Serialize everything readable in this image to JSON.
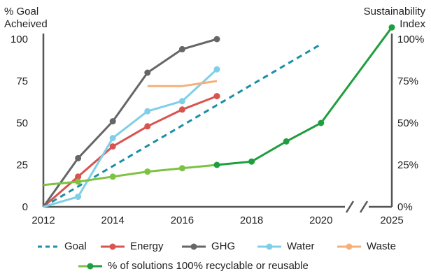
{
  "left_axis_title_line1": "% Goal",
  "left_axis_title_line2": "Acheived",
  "right_axis_title_line1": "Sustainability",
  "right_axis_title_line2": "Index",
  "colors": {
    "goal": "#1a8fa8",
    "energy": "#d9534f",
    "ghg": "#666666",
    "water": "#7fcfe8",
    "waste": "#f5b07a",
    "solutions_early": "#7dc242",
    "solutions_late": "#1f9e3f",
    "axis": "#555555"
  },
  "chart_data": {
    "type": "line",
    "x_ticks": [
      "2012",
      "2014",
      "2016",
      "2018",
      "2020",
      "2025"
    ],
    "x_axis_break": true,
    "y_left_ticks": [
      "0",
      "25",
      "50",
      "75",
      "100"
    ],
    "y_right_ticks": [
      "0%",
      "25%",
      "50%",
      "75%",
      "100%"
    ],
    "ylim": [
      0,
      100
    ],
    "series": [
      {
        "name": "Goal",
        "style": "dashed",
        "points": [
          [
            2012,
            0
          ],
          [
            2020,
            97
          ]
        ]
      },
      {
        "name": "Energy",
        "points": [
          [
            2012,
            0
          ],
          [
            2013,
            18
          ],
          [
            2014,
            36
          ],
          [
            2015,
            48
          ],
          [
            2016,
            58
          ],
          [
            2017,
            66
          ]
        ]
      },
      {
        "name": "GHG",
        "points": [
          [
            2012,
            0
          ],
          [
            2013,
            29
          ],
          [
            2014,
            51
          ],
          [
            2015,
            80
          ],
          [
            2016,
            94
          ],
          [
            2017,
            100
          ]
        ]
      },
      {
        "name": "Water",
        "points": [
          [
            2012,
            0
          ],
          [
            2013,
            6
          ],
          [
            2014,
            41
          ],
          [
            2015,
            57
          ],
          [
            2016,
            63
          ],
          [
            2017,
            82
          ]
        ]
      },
      {
        "name": "Waste",
        "points": [
          [
            2015,
            72
          ],
          [
            2016,
            72
          ],
          [
            2017,
            75
          ]
        ]
      },
      {
        "name": "% of solutions 100% recyclable or reusable",
        "axis": "right",
        "points": [
          [
            2012,
            13
          ],
          [
            2013,
            15
          ],
          [
            2014,
            18
          ],
          [
            2015,
            21
          ],
          [
            2016,
            23
          ],
          [
            2017,
            25
          ],
          [
            2018,
            27
          ],
          [
            2019,
            39
          ],
          [
            2020,
            50
          ],
          [
            2025,
            107
          ]
        ]
      }
    ]
  },
  "legend": {
    "goal": "Goal",
    "energy": "Energy",
    "ghg": "GHG",
    "water": "Water",
    "waste": "Waste",
    "solutions": "% of solutions 100% recyclable or reusable"
  }
}
